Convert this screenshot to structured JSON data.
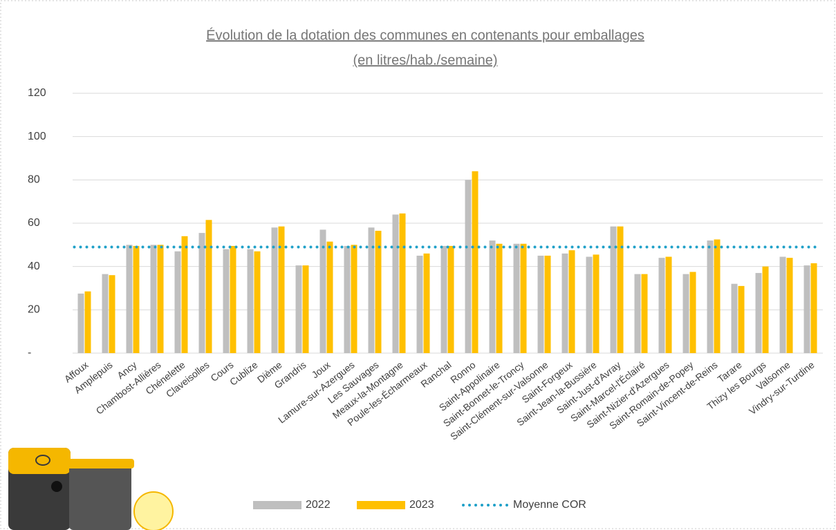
{
  "chart_data": {
    "type": "bar",
    "title": "Évolution de la dotation des communes en contenants pour emballages",
    "subtitle": "(en litres/hab./semaine)",
    "categories": [
      "Affoux",
      "Amplepuis",
      "Ancy",
      "Chambost-Allières",
      "Chénelette",
      "Claveisolles",
      "Cours",
      "Cublize",
      "Dième",
      "Grandris",
      "Joux",
      "Lamure-sur-Azergues",
      "Les Sauvages",
      "Meaux-la-Montagne",
      "Poule-les-Écharmeaux",
      "Ranchal",
      "Ronno",
      "Saint-Appolinaire",
      "Saint-Bonnet-le-Troncy",
      "Saint-Clément-sur-Valsonne",
      "Saint-Forgeux",
      "Saint-Jean-la-Bussière",
      "Saint-Just-d'Avray",
      "Saint-Marcel-l'Éclairé",
      "Saint-Nizier-d'Azergues",
      "Saint-Romain-de-Popey",
      "Saint-Vincent-de-Reins",
      "Tarare",
      "Thizy les Bourgs",
      "Valsonne",
      "Vindry-sur-Turdine"
    ],
    "series": [
      {
        "name": "2022",
        "color": "#bfbfbf",
        "values": [
          27.5,
          36.5,
          50,
          50,
          47,
          55.5,
          48,
          48,
          58,
          40.5,
          57,
          49.5,
          58,
          64,
          45,
          49.5,
          80,
          52,
          50.5,
          45,
          46,
          44.5,
          58.5,
          36.5,
          44,
          36.5,
          52,
          32,
          37,
          44.5,
          40.5
        ]
      },
      {
        "name": "2023",
        "color": "#ffc000",
        "values": [
          28.5,
          36,
          49.5,
          50,
          54,
          61.5,
          49.5,
          47,
          58.5,
          40.5,
          51.5,
          50,
          56.5,
          64.5,
          46,
          49.5,
          84,
          50.5,
          50.5,
          45,
          47.5,
          45.5,
          58.5,
          36.5,
          44.5,
          37.5,
          52.5,
          31,
          40,
          44,
          41.5
        ]
      },
      {
        "name": "Moyenne COR",
        "type": "line",
        "color": "#1fa0c8",
        "values": [
          49,
          49,
          49,
          49,
          49,
          49,
          49,
          49,
          49,
          49,
          49,
          49,
          49,
          49,
          49,
          49,
          49,
          49,
          49,
          49,
          49,
          49,
          49,
          49,
          49,
          49,
          49,
          49,
          49,
          49,
          49
        ]
      }
    ],
    "ylim": [
      0,
      120
    ],
    "yticks": [
      {
        "value": 0,
        "label": "-"
      },
      20,
      40,
      60,
      80,
      100,
      120
    ],
    "grid": true,
    "legend": "bottom"
  }
}
